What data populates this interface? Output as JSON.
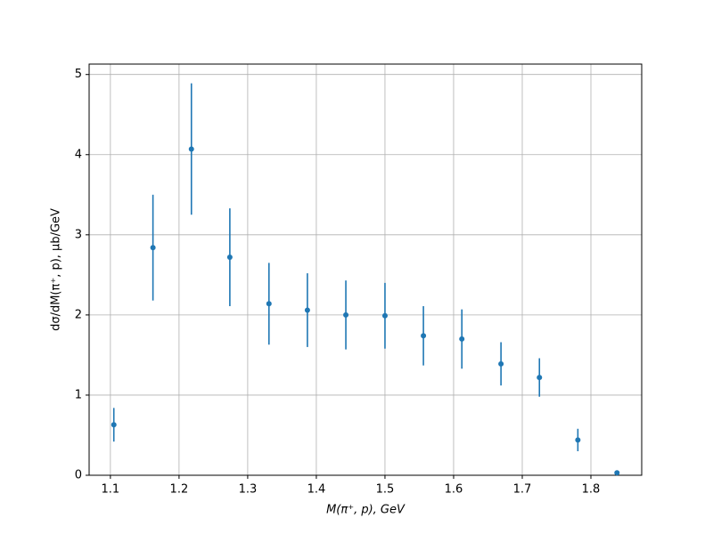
{
  "chart_data": {
    "type": "errorbar",
    "x_label": "M(π⁺, p), GeV",
    "y_label": "dσ/dM(π⁺, p), μb/GeV",
    "x": [
      1.105,
      1.162,
      1.218,
      1.274,
      1.331,
      1.387,
      1.443,
      1.5,
      1.556,
      1.612,
      1.669,
      1.725,
      1.781,
      1.838
    ],
    "values": [
      0.63,
      2.84,
      4.07,
      2.72,
      2.14,
      2.06,
      2.0,
      1.99,
      1.74,
      1.7,
      1.39,
      1.22,
      0.44,
      0.03
    ],
    "errors": [
      0.21,
      0.66,
      0.82,
      0.61,
      0.51,
      0.46,
      0.43,
      0.41,
      0.37,
      0.37,
      0.27,
      0.24,
      0.14,
      0.02
    ],
    "color": "#1f77b4",
    "xlim": [
      1.069,
      1.874
    ],
    "ylim": [
      0,
      5.13
    ],
    "xticks": [
      1.1,
      1.2,
      1.3,
      1.4,
      1.5,
      1.6,
      1.7,
      1.8
    ],
    "yticks": [
      0,
      1,
      2,
      3,
      4,
      5
    ],
    "grid": true
  }
}
